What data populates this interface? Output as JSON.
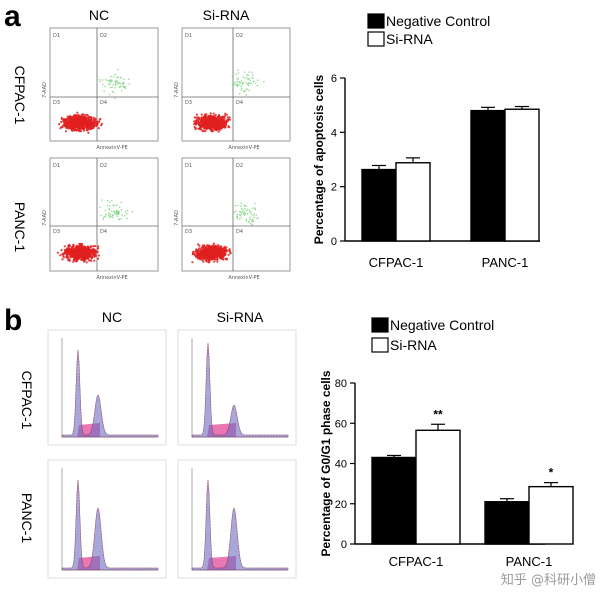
{
  "panel_a": {
    "letter": "a",
    "col_headers": [
      "NC",
      "Si-RNA"
    ],
    "row_headers": [
      "CFPAC-1",
      "PANC-1"
    ],
    "quadrants": [
      "D1",
      "D2",
      "D3",
      "D4"
    ],
    "x_axis_label": "AnnexinV-PE",
    "y_axis_label": "7-AAD"
  },
  "panel_b": {
    "letter": "b",
    "col_headers": [
      "NC",
      "Si-RNA"
    ],
    "row_headers": [
      "CFPAC-1",
      "PANC-1"
    ]
  },
  "watermark": "知乎 @科研小僧",
  "colors": {
    "negative_control": "#000000",
    "si_rna": "#ffffff",
    "dots_red": "#e02020",
    "dots_green": "#7bd37b",
    "hist_blue": "#6d6fc0",
    "hist_pink": "#e04a9a"
  },
  "chart_data": [
    {
      "id": "chart-a",
      "type": "bar",
      "title": "",
      "xlabel": "",
      "ylabel": "Percentage of apoptosis cells",
      "categories": [
        "CFPAC-1",
        "PANC-1"
      ],
      "ylim": [
        0,
        6
      ],
      "yticks": [
        0,
        2,
        4,
        6
      ],
      "series": [
        {
          "name": "Negative Control",
          "values": [
            2.63,
            4.8
          ],
          "errors": [
            0.15,
            0.12
          ],
          "fill": "#000000"
        },
        {
          "name": "Si-RNA",
          "values": [
            2.88,
            4.85
          ],
          "errors": [
            0.18,
            0.1
          ],
          "fill": "#ffffff"
        }
      ],
      "significance": [
        "",
        ""
      ],
      "legend": "top-left"
    },
    {
      "id": "chart-b",
      "type": "bar",
      "title": "",
      "xlabel": "",
      "ylabel": "Percentage of G0/G1 phase cells",
      "categories": [
        "CFPAC-1",
        "PANC-1"
      ],
      "ylim": [
        0,
        80
      ],
      "yticks": [
        0,
        20,
        40,
        60,
        80
      ],
      "series": [
        {
          "name": "Negative Control",
          "values": [
            43,
            21
          ],
          "errors": [
            1.0,
            1.5
          ],
          "fill": "#000000"
        },
        {
          "name": "Si-RNA",
          "values": [
            56.5,
            28.5
          ],
          "errors": [
            3.0,
            2.0
          ],
          "fill": "#ffffff"
        }
      ],
      "significance": [
        "**",
        "*"
      ],
      "legend": "top-left"
    }
  ]
}
